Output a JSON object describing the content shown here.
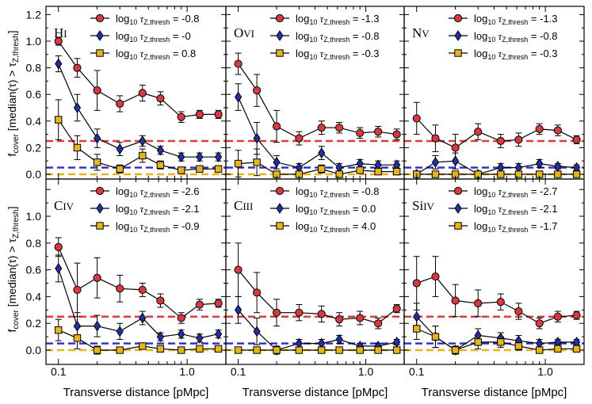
{
  "figure": {
    "ylabel": "f_cover [median(τ) > τ_Z,thresh]",
    "ylabel_parts": [
      "f",
      "cover",
      " [median(τ) > τ",
      "Z,thresh",
      "]"
    ],
    "xlabel": "Transverse distance [pMpc]",
    "xtick_labels": [
      "0.1",
      "1.0"
    ],
    "ytick_labels": [
      "0.0",
      "0.2",
      "0.4",
      "0.6",
      "0.8",
      "1.0",
      "1.2"
    ],
    "legend_prefix": "log",
    "legend_sub10": "10",
    "legend_tau": "τ",
    "legend_tau_sub": "Z,thresh"
  },
  "colors": {
    "red": "#d9383f",
    "blue": "#1f2fb0",
    "yellow": "#e6b619",
    "ref_red": "#e03a3a",
    "ref_blue": "#2a2acf",
    "ref_yellow": "#e6b619"
  },
  "chart_data": [
    {
      "type": "line",
      "ion": "HI",
      "ion_main": "H",
      "ion_roman": "I",
      "x": [
        0.1,
        0.14,
        0.2,
        0.3,
        0.45,
        0.62,
        0.9,
        1.25,
        1.75
      ],
      "xlim": [
        0.08,
        2.0
      ],
      "ylim": [
        -0.05,
        1.2
      ],
      "xscale": "log",
      "reference_lines": [
        0.25,
        0.05,
        0.0
      ],
      "series": [
        {
          "name": "= -0.8",
          "marker": "circle",
          "color": "red",
          "values": [
            1.0,
            0.8,
            0.63,
            0.53,
            0.61,
            0.57,
            0.43,
            0.45,
            0.45
          ],
          "errors": [
            0.03,
            0.07,
            0.15,
            0.06,
            0.06,
            0.05,
            0.04,
            0.03,
            0.03
          ]
        },
        {
          "name": "= -0",
          "marker": "diamond",
          "color": "blue",
          "values": [
            0.83,
            0.5,
            0.27,
            0.19,
            0.25,
            0.18,
            0.13,
            0.13,
            0.13
          ],
          "errors": [
            0.06,
            0.1,
            0.07,
            0.05,
            0.04,
            0.03,
            0.03,
            0.03,
            0.03
          ]
        },
        {
          "name": "= 0.8",
          "marker": "square",
          "color": "yellow",
          "values": [
            0.41,
            0.2,
            0.09,
            0.04,
            0.14,
            0.07,
            0.03,
            0.04,
            0.04
          ],
          "errors": [
            0.15,
            0.09,
            0.06,
            0.03,
            0.05,
            0.03,
            0.02,
            0.02,
            0.02
          ]
        }
      ]
    },
    {
      "type": "line",
      "ion": "OVI",
      "ion_main": "O",
      "ion_roman": "VI",
      "x": [
        0.1,
        0.14,
        0.2,
        0.3,
        0.45,
        0.62,
        0.9,
        1.25,
        1.75
      ],
      "xlim": [
        0.08,
        2.0
      ],
      "ylim": [
        -0.05,
        1.2
      ],
      "xscale": "log",
      "reference_lines": [
        0.25,
        0.05,
        0.0
      ],
      "series": [
        {
          "name": "= -1.3",
          "marker": "circle",
          "color": "red",
          "values": [
            0.83,
            0.63,
            0.36,
            0.27,
            0.35,
            0.35,
            0.31,
            0.32,
            0.3
          ],
          "errors": [
            0.08,
            0.12,
            0.12,
            0.05,
            0.05,
            0.04,
            0.04,
            0.04,
            0.04
          ]
        },
        {
          "name": "= -0.8",
          "marker": "diamond",
          "color": "blue",
          "values": [
            0.58,
            0.27,
            0.09,
            0.05,
            0.16,
            0.05,
            0.08,
            0.07,
            0.07
          ],
          "errors": [
            0.1,
            0.12,
            0.05,
            0.03,
            0.05,
            0.03,
            0.03,
            0.03,
            0.03
          ]
        },
        {
          "name": "= -0.3",
          "marker": "square",
          "color": "yellow",
          "values": [
            0.08,
            0.09,
            0.0,
            0.0,
            0.04,
            0.0,
            0.03,
            0.02,
            0.02
          ],
          "errors": [
            0.1,
            0.1,
            0.02,
            0.02,
            0.03,
            0.02,
            0.02,
            0.02,
            0.02
          ]
        }
      ]
    },
    {
      "type": "line",
      "ion": "NV",
      "ion_main": "N",
      "ion_roman": "V",
      "x": [
        0.1,
        0.14,
        0.2,
        0.3,
        0.45,
        0.62,
        0.9,
        1.25,
        1.75
      ],
      "xlim": [
        0.08,
        2.0
      ],
      "ylim": [
        -0.05,
        1.2
      ],
      "xscale": "log",
      "reference_lines": [
        0.25,
        0.05,
        0.0
      ],
      "series": [
        {
          "name": "= -1.3",
          "marker": "circle",
          "color": "red",
          "values": [
            0.42,
            0.27,
            0.2,
            0.32,
            0.25,
            0.26,
            0.34,
            0.33,
            0.26
          ],
          "errors": [
            0.12,
            0.1,
            0.1,
            0.06,
            0.05,
            0.05,
            0.04,
            0.04,
            0.03
          ]
        },
        {
          "name": "= -0.8",
          "marker": "diamond",
          "color": "blue",
          "values": [
            0.0,
            0.09,
            0.1,
            0.0,
            0.05,
            0.05,
            0.08,
            0.06,
            0.05
          ],
          "errors": [
            0.02,
            0.05,
            0.06,
            0.02,
            0.03,
            0.03,
            0.03,
            0.02,
            0.02
          ]
        },
        {
          "name": "= -0.3",
          "marker": "square",
          "color": "yellow",
          "values": [
            0.0,
            0.0,
            0.0,
            0.0,
            0.0,
            0.0,
            0.0,
            0.0,
            0.0
          ],
          "errors": [
            0.02,
            0.02,
            0.02,
            0.02,
            0.02,
            0.02,
            0.02,
            0.02,
            0.02
          ]
        }
      ]
    },
    {
      "type": "line",
      "ion": "CIV",
      "ion_main": "C",
      "ion_roman": "IV",
      "x": [
        0.1,
        0.14,
        0.2,
        0.3,
        0.45,
        0.62,
        0.9,
        1.25,
        1.75
      ],
      "xlim": [
        0.08,
        2.0
      ],
      "ylim": [
        -0.05,
        1.2
      ],
      "xscale": "log",
      "reference_lines": [
        0.25,
        0.05,
        0.0
      ],
      "series": [
        {
          "name": "= -2.6",
          "marker": "circle",
          "color": "red",
          "values": [
            0.77,
            0.45,
            0.54,
            0.46,
            0.45,
            0.37,
            0.24,
            0.34,
            0.35
          ],
          "errors": [
            0.07,
            0.2,
            0.15,
            0.1,
            0.05,
            0.05,
            0.04,
            0.04,
            0.03
          ]
        },
        {
          "name": "= -2.1",
          "marker": "diamond",
          "color": "blue",
          "values": [
            0.61,
            0.18,
            0.18,
            0.14,
            0.24,
            0.1,
            0.12,
            0.09,
            0.12
          ],
          "errors": [
            0.1,
            0.1,
            0.08,
            0.06,
            0.05,
            0.03,
            0.03,
            0.03,
            0.03
          ]
        },
        {
          "name": "= -0.9",
          "marker": "square",
          "color": "yellow",
          "values": [
            0.15,
            0.09,
            0.0,
            0.0,
            0.03,
            0.01,
            0.0,
            0.01,
            0.01
          ],
          "errors": [
            0.08,
            0.08,
            0.03,
            0.02,
            0.02,
            0.02,
            0.02,
            0.02,
            0.02
          ]
        }
      ]
    },
    {
      "type": "line",
      "ion": "CIII",
      "ion_main": "C",
      "ion_roman": "III",
      "x": [
        0.1,
        0.14,
        0.2,
        0.3,
        0.45,
        0.62,
        0.9,
        1.25,
        1.75
      ],
      "xlim": [
        0.08,
        2.0
      ],
      "ylim": [
        -0.05,
        1.2
      ],
      "xscale": "log",
      "reference_lines": [
        0.25,
        0.05,
        0.0
      ],
      "series": [
        {
          "name": "= -0.8",
          "marker": "circle",
          "color": "red",
          "values": [
            0.6,
            0.43,
            0.28,
            0.28,
            0.27,
            0.23,
            0.24,
            0.2,
            0.31
          ],
          "errors": [
            0.2,
            0.15,
            0.1,
            0.06,
            0.06,
            0.05,
            0.05,
            0.04,
            0.03
          ]
        },
        {
          "name": "= 0.0",
          "marker": "diamond",
          "color": "blue",
          "values": [
            0.3,
            0.14,
            0.0,
            0.05,
            0.05,
            0.08,
            0.03,
            0.03,
            0.06
          ],
          "errors": [
            0.1,
            0.1,
            0.03,
            0.03,
            0.03,
            0.03,
            0.02,
            0.02,
            0.02
          ]
        },
        {
          "name": "= 4.0",
          "marker": "square",
          "color": "yellow",
          "values": [
            0.0,
            0.0,
            0.0,
            0.0,
            0.0,
            0.0,
            0.0,
            0.0,
            0.0
          ],
          "errors": [
            0.02,
            0.02,
            0.02,
            0.02,
            0.02,
            0.02,
            0.02,
            0.02,
            0.02
          ]
        }
      ]
    },
    {
      "type": "line",
      "ion": "SiIV",
      "ion_main": "Si",
      "ion_roman": "IV",
      "x": [
        0.1,
        0.14,
        0.2,
        0.3,
        0.45,
        0.62,
        0.9,
        1.25,
        1.75
      ],
      "xlim": [
        0.08,
        2.0
      ],
      "ylim": [
        -0.05,
        1.2
      ],
      "xscale": "log",
      "reference_lines": [
        0.25,
        0.05,
        0.0
      ],
      "series": [
        {
          "name": "= -2.7",
          "marker": "circle",
          "color": "red",
          "values": [
            0.5,
            0.55,
            0.37,
            0.35,
            0.36,
            0.29,
            0.2,
            0.25,
            0.26
          ],
          "errors": [
            0.2,
            0.15,
            0.12,
            0.1,
            0.06,
            0.06,
            0.04,
            0.04,
            0.03
          ]
        },
        {
          "name": "= -2.1",
          "marker": "diamond",
          "color": "blue",
          "values": [
            0.25,
            0.1,
            0.0,
            0.11,
            0.09,
            0.07,
            0.05,
            0.06,
            0.06
          ],
          "errors": [
            0.1,
            0.08,
            0.03,
            0.05,
            0.04,
            0.04,
            0.03,
            0.02,
            0.02
          ]
        },
        {
          "name": "= -1.7",
          "marker": "square",
          "color": "yellow",
          "values": [
            0.16,
            0.1,
            0.0,
            0.06,
            0.06,
            0.03,
            0.0,
            0.01,
            0.01
          ],
          "errors": [
            0.08,
            0.08,
            0.03,
            0.05,
            0.04,
            0.03,
            0.02,
            0.02,
            0.02
          ]
        }
      ]
    }
  ]
}
